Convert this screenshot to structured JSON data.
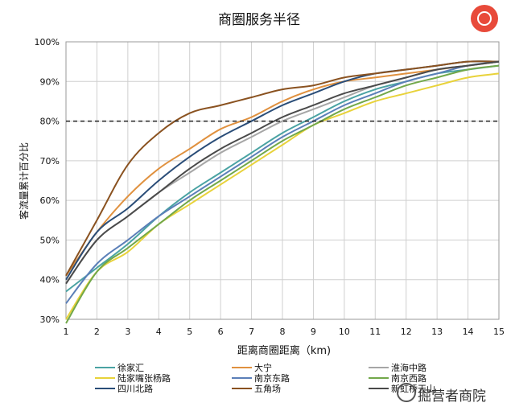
{
  "logo": {
    "icon": "fox-logo-icon",
    "color": "#e84a3a"
  },
  "watermark": {
    "icon": "wechat-icon",
    "text": "掘营者商院"
  },
  "chart_data": {
    "type": "line",
    "title": "商圈服务半径",
    "xlabel": "距离商圈距离（km)",
    "ylabel": "客流量累计百分比",
    "xlim": [
      1,
      15
    ],
    "ylim": [
      30,
      100
    ],
    "x_ticks": [
      "1",
      "2",
      "3",
      "4",
      "5",
      "6",
      "7",
      "8",
      "9",
      "10",
      "11",
      "12",
      "13",
      "14",
      "15"
    ],
    "y_ticks": [
      "30%",
      "40%",
      "50%",
      "60%",
      "70%",
      "80%",
      "90%",
      "100%"
    ],
    "grid": true,
    "legend_position": "bottom",
    "reference_line": {
      "y": 80,
      "style": "dashed",
      "color": "#222222"
    },
    "x": [
      1,
      2,
      3,
      4,
      5,
      6,
      7,
      8,
      9,
      10,
      11,
      12,
      13,
      14,
      15
    ],
    "series": [
      {
        "name": "徐家汇",
        "color": "#4aa3a3",
        "values": [
          37,
          43,
          49,
          56,
          62,
          67,
          72,
          77,
          81,
          85,
          88,
          90,
          92,
          93,
          94
        ]
      },
      {
        "name": "大宁",
        "color": "#e0913f",
        "values": [
          41,
          52,
          61,
          68,
          73,
          78,
          81,
          85,
          88,
          90,
          91,
          92,
          93,
          94,
          95
        ]
      },
      {
        "name": "淮海中路",
        "color": "#a6a6a6",
        "values": [
          39,
          50,
          56,
          62,
          67,
          72,
          76,
          80,
          83,
          86,
          89,
          91,
          93,
          94,
          95
        ]
      },
      {
        "name": "陆家嘴张杨路",
        "color": "#e8d23a",
        "values": [
          30,
          42,
          47,
          54,
          59,
          64,
          69,
          74,
          79,
          82,
          85,
          87,
          89,
          91,
          92
        ]
      },
      {
        "name": "南京东路",
        "color": "#5b7fb8",
        "values": [
          34,
          44,
          50,
          56,
          61,
          66,
          71,
          76,
          80,
          84,
          87,
          90,
          92,
          94,
          95
        ]
      },
      {
        "name": "南京西路",
        "color": "#72a84a",
        "values": [
          29,
          42,
          48,
          54,
          60,
          65,
          70,
          75,
          79,
          83,
          86,
          89,
          91,
          93,
          94
        ]
      },
      {
        "name": "四川北路",
        "color": "#2a4d78",
        "values": [
          40,
          52,
          58,
          65,
          71,
          76,
          80,
          84,
          87,
          90,
          92,
          93,
          94,
          95,
          95
        ]
      },
      {
        "name": "五角场",
        "color": "#8a5220",
        "values": [
          41,
          55,
          69,
          77,
          82,
          84,
          86,
          88,
          89,
          91,
          92,
          93,
          94,
          95,
          95
        ]
      },
      {
        "name": "新虹桥天山",
        "color": "#4a4a4a",
        "values": [
          39,
          50,
          56,
          62,
          68,
          73,
          77,
          81,
          84,
          87,
          89,
          91,
          93,
          94,
          95
        ]
      }
    ]
  }
}
